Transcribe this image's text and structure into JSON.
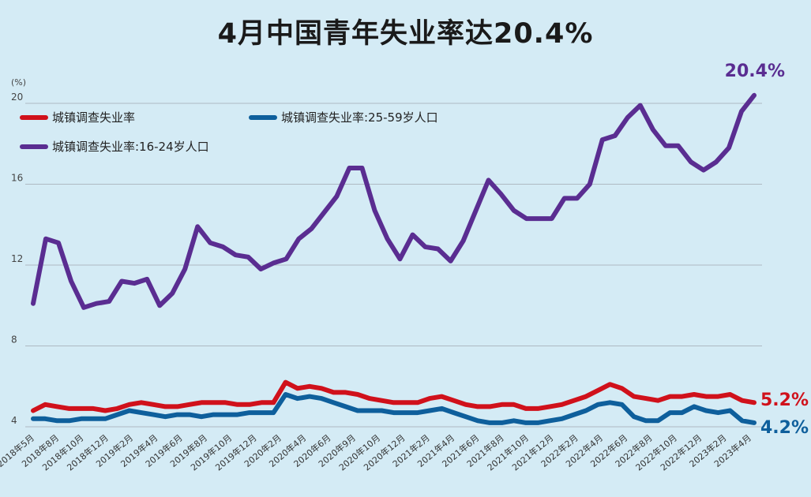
{
  "title": "4月中国青年失业率达20.4%",
  "chart_data": {
    "type": "line",
    "title": "4月中国青年失业率达20.4%",
    "ylabel": "(%)",
    "ylim": [
      4,
      20
    ],
    "yticks": [
      "4",
      "8",
      "12",
      "16",
      "20"
    ],
    "grid": true,
    "x_tick_labels": [
      "2018年5月",
      "2018年8月",
      "2018年10月",
      "2018年12月",
      "2019年2月",
      "2019年4月",
      "2019年6月",
      "2019年8月",
      "2019年10月",
      "2019年12月",
      "2020年2月",
      "2020年4月",
      "2020年6月",
      "2020年9月",
      "2020年10月",
      "2020年12月",
      "2021年2月",
      "2021年4月",
      "2021年6月",
      "2021年8月",
      "2021年10月",
      "2021年12月",
      "2022年2月",
      "2022年4月",
      "2022年6月",
      "2022年8月",
      "2022年10月",
      "2022年12月",
      "2023年2月",
      "2023年4月"
    ],
    "series": [
      {
        "name": "城镇调查失业率",
        "color": "#d0111b",
        "end_label": "5.2%",
        "values": [
          4.8,
          5.1,
          5.0,
          4.9,
          4.9,
          4.9,
          4.8,
          4.9,
          5.1,
          5.2,
          5.1,
          5.0,
          5.0,
          5.1,
          5.2,
          5.2,
          5.2,
          5.1,
          5.1,
          5.2,
          5.2,
          6.2,
          5.9,
          6.0,
          5.9,
          5.7,
          5.7,
          5.6,
          5.4,
          5.3,
          5.2,
          5.2,
          5.2,
          5.4,
          5.5,
          5.3,
          5.1,
          5.0,
          5.0,
          5.1,
          5.1,
          4.9,
          4.9,
          5.0,
          5.1,
          5.3,
          5.5,
          5.8,
          6.1,
          5.9,
          5.5,
          5.4,
          5.3,
          5.5,
          5.5,
          5.6,
          5.5,
          5.5,
          5.6,
          5.3,
          5.2
        ]
      },
      {
        "name": "城镇调查失业率:25-59岁人口",
        "color": "#0e5f9c",
        "end_label": "4.2%",
        "values": [
          4.4,
          4.4,
          4.3,
          4.3,
          4.4,
          4.4,
          4.4,
          4.6,
          4.8,
          4.7,
          4.6,
          4.5,
          4.6,
          4.6,
          4.5,
          4.6,
          4.6,
          4.6,
          4.7,
          4.7,
          4.7,
          5.6,
          5.4,
          5.5,
          5.4,
          5.2,
          5.0,
          4.8,
          4.8,
          4.8,
          4.7,
          4.7,
          4.7,
          4.8,
          4.9,
          4.7,
          4.5,
          4.3,
          4.2,
          4.2,
          4.3,
          4.2,
          4.2,
          4.3,
          4.4,
          4.6,
          4.8,
          5.1,
          5.2,
          5.1,
          4.5,
          4.3,
          4.3,
          4.7,
          4.7,
          5.0,
          4.8,
          4.7,
          4.8,
          4.3,
          4.2
        ]
      },
      {
        "name": "城镇调查失业率:16-24岁人口",
        "color": "#5a2d91",
        "end_label": "20.4%",
        "values": [
          10.1,
          13.3,
          13.1,
          11.2,
          9.9,
          10.1,
          10.2,
          11.2,
          11.1,
          11.3,
          10.0,
          10.6,
          11.8,
          13.9,
          13.1,
          12.9,
          12.5,
          12.4,
          11.8,
          12.1,
          12.3,
          13.3,
          13.8,
          14.6,
          15.4,
          16.8,
          16.8,
          14.7,
          13.3,
          12.3,
          13.5,
          12.9,
          12.8,
          12.2,
          13.2,
          14.7,
          16.2,
          15.5,
          14.7,
          14.3,
          14.3,
          14.3,
          15.3,
          15.3,
          16.0,
          18.2,
          18.4,
          19.3,
          19.9,
          18.7,
          17.9,
          17.9,
          17.1,
          16.7,
          17.1,
          17.8,
          19.6,
          20.4
        ]
      }
    ]
  }
}
